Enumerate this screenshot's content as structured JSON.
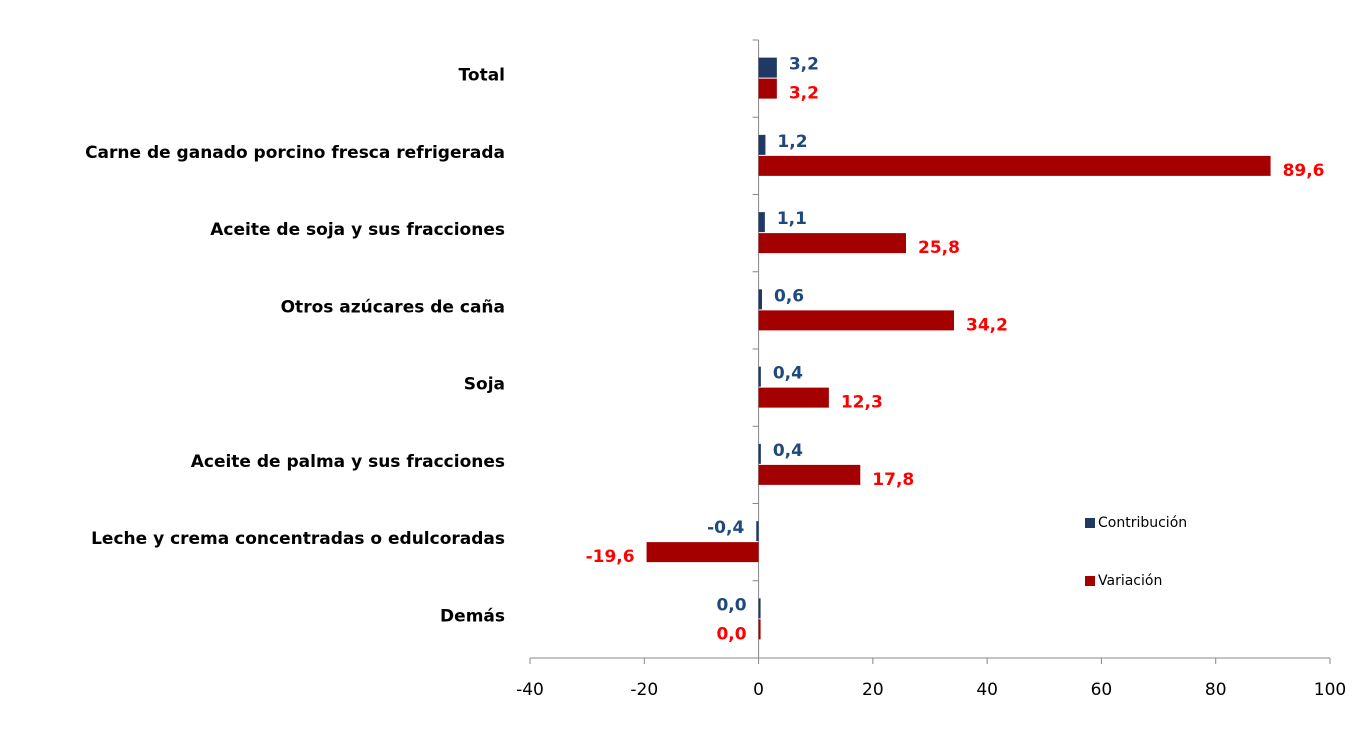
{
  "chart_data": {
    "type": "bar",
    "orientation": "horizontal",
    "categories": [
      "Total",
      "Carne de ganado porcino fresca refrigerada",
      "Aceite de soja y sus fracciones",
      "Otros azúcares de caña",
      "Soja",
      "Aceite de palma y sus fracciones",
      "Leche y crema concentradas o edulcoradas",
      "Demás"
    ],
    "series": [
      {
        "name": "Contribución",
        "color": "#1f3864",
        "label_color": "#1f497d",
        "values": [
          3.2,
          1.2,
          1.1,
          0.6,
          0.4,
          0.4,
          -0.4,
          0.0
        ],
        "value_labels": [
          "3,2",
          "1,2",
          "1,1",
          "0,6",
          "0,4",
          "0,4",
          "-0,4",
          "0,0"
        ]
      },
      {
        "name": "Variación",
        "color": "#a50000",
        "label_color": "#ff0000",
        "values": [
          3.2,
          89.6,
          25.8,
          34.2,
          12.3,
          17.8,
          -19.6,
          0.0
        ],
        "value_labels": [
          "3,2",
          "89,6",
          "25,8",
          "34,2",
          "12,3",
          "17,8",
          "-19,6",
          "0,0"
        ]
      }
    ],
    "xlim": [
      -40,
      100
    ],
    "xticks": [
      -40,
      -20,
      0,
      20,
      40,
      60,
      80,
      100
    ],
    "legend": "right",
    "grid": false
  }
}
